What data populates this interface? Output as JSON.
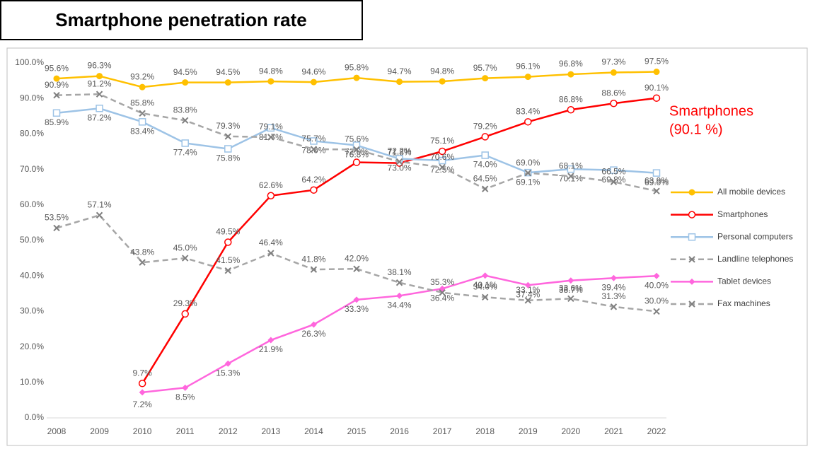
{
  "chart_data": {
    "type": "line",
    "title": "Smartphone penetration rate",
    "categories": [
      "2008",
      "2009",
      "2010",
      "2011",
      "2012",
      "2013",
      "2014",
      "2015",
      "2016",
      "2017",
      "2018",
      "2019",
      "2020",
      "2021",
      "2022"
    ],
    "ylim": [
      0,
      100
    ],
    "yticks": [
      {
        "value": 0,
        "label": "0.0%"
      },
      {
        "value": 10,
        "label": "10.0%"
      },
      {
        "value": 20,
        "label": "20.0%"
      },
      {
        "value": 30,
        "label": "30.0%"
      },
      {
        "value": 40,
        "label": "40.0%"
      },
      {
        "value": 50,
        "label": "50.0%"
      },
      {
        "value": 60,
        "label": "60.0%"
      },
      {
        "value": 70,
        "label": "70.0%"
      },
      {
        "value": 80,
        "label": "80.0%"
      },
      {
        "value": 90,
        "label": "90.0%"
      },
      {
        "value": 100,
        "label": "100.0%"
      }
    ],
    "grid": false,
    "legend": "right",
    "annotation": [
      "Smartphones",
      "(90.1 %)"
    ],
    "annotation_color": "#ff0000",
    "series": [
      {
        "name": "All mobile devices",
        "color": "#ffc000",
        "marker": "circle",
        "dashed": false,
        "values": [
          95.6,
          96.3,
          93.2,
          94.5,
          94.5,
          94.8,
          94.6,
          95.8,
          94.7,
          94.8,
          95.7,
          96.1,
          96.8,
          97.3,
          97.5
        ],
        "value_labels": [
          "95.6%",
          "96.3%",
          "93.2%",
          "94.5%",
          "94.5%",
          "94.8%",
          "94.6%",
          "95.8%",
          "94.7%",
          "94.8%",
          "95.7%",
          "96.1%",
          "96.8%",
          "97.3%",
          "97.5%"
        ]
      },
      {
        "name": "Smartphones",
        "color": "#ff0000",
        "marker": "open-circle",
        "dashed": false,
        "values": [
          null,
          null,
          9.7,
          29.3,
          49.5,
          62.6,
          64.2,
          72.0,
          71.8,
          75.1,
          79.2,
          83.4,
          86.8,
          88.6,
          90.1
        ],
        "value_labels": [
          null,
          null,
          "9.7%",
          "29.3%",
          "49.5%",
          "62.6%",
          "64.2%",
          "72.0%",
          "71.8%",
          "75.1%",
          "79.2%",
          "83.4%",
          "86.8%",
          "88.6%",
          "90.1%"
        ]
      },
      {
        "name": "Personal computers",
        "color": "#9dc3e6",
        "marker": "open-square",
        "dashed": false,
        "values": [
          85.9,
          87.2,
          83.4,
          77.4,
          75.8,
          81.7,
          78.0,
          76.8,
          73.0,
          72.5,
          74.0,
          69.1,
          70.1,
          69.8,
          69.0
        ],
        "value_labels": [
          "85.9%",
          "87.2%",
          "83.4%",
          "77.4%",
          "75.8%",
          "81.7%",
          "78.0%",
          "76.8%",
          "73.0%",
          "72.5%",
          "74.0%",
          "69.1%",
          "70.1%",
          "69.8%",
          "69.0%"
        ]
      },
      {
        "name": "Landline telephones",
        "color": "#a6a6a6",
        "marker": "x",
        "dashed": true,
        "values": [
          90.9,
          91.2,
          85.8,
          83.8,
          79.3,
          79.1,
          75.7,
          75.6,
          72.2,
          70.6,
          64.5,
          69.0,
          68.1,
          66.5,
          63.9
        ],
        "value_labels": [
          "90.9%",
          "91.2%",
          "85.8%",
          "83.8%",
          "79.3%",
          "79.1%",
          "75.7%",
          "75.6%",
          "72.2%",
          "70.6%",
          "64.5%",
          "69.0%",
          "68.1%",
          "66.5%",
          "63.9%"
        ]
      },
      {
        "name": "Tablet devices",
        "color": "#ff66dd",
        "marker": "diamond",
        "dashed": false,
        "values": [
          null,
          null,
          7.2,
          8.5,
          15.3,
          21.9,
          26.3,
          33.3,
          34.4,
          36.4,
          40.1,
          37.4,
          38.7,
          39.4,
          40.0
        ],
        "value_labels": [
          null,
          null,
          "7.2%",
          "8.5%",
          "15.3%",
          "21.9%",
          "26.3%",
          "33.3%",
          "34.4%",
          "36.4%",
          "40.1%",
          "37.4%",
          "38.7%",
          "39.4%",
          "40.0%"
        ]
      },
      {
        "name": "Fax machines",
        "color": "#a6a6a6",
        "marker": "x",
        "dashed": true,
        "values": [
          53.5,
          57.1,
          43.8,
          45.0,
          41.5,
          46.4,
          41.8,
          42.0,
          38.1,
          35.3,
          34.0,
          33.1,
          33.6,
          31.3,
          30.0
        ],
        "value_labels": [
          "53.5%",
          "57.1%",
          "43.8%",
          "45.0%",
          "41.5%",
          "46.4%",
          "41.8%",
          "42.0%",
          "38.1%",
          "35.3%",
          "34.0%",
          "33.1%",
          "33.6%",
          "31.3%",
          "30.0%"
        ]
      }
    ]
  }
}
